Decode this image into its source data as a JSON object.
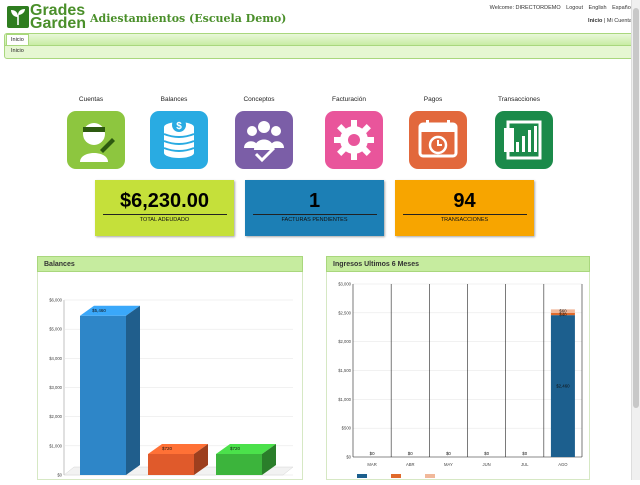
{
  "header": {
    "logo_line1": "Grades",
    "logo_line2": "Garden",
    "app_title": "Adiestamientos (Escuela Demo)",
    "welcome": "Welcome: DIRECTORDEMO",
    "logout": "Logout",
    "lang_en": "English",
    "lang_es": "Español",
    "nav_inicio": "Inicio",
    "nav_sep": "|",
    "nav_account": "Mi Cuenta"
  },
  "tabs": {
    "active": "Inicio",
    "breadcrumb": "Inicio"
  },
  "modules": [
    {
      "label": "Cuentas",
      "color": "#8dc63f",
      "icon": "student-icon"
    },
    {
      "label": "Balances",
      "color": "#29abe2",
      "icon": "coins-icon"
    },
    {
      "label": "Conceptos",
      "color": "#7b5ea7",
      "icon": "group-check-icon"
    },
    {
      "label": "Facturación",
      "color": "#e9559b",
      "icon": "gear-icon"
    },
    {
      "label": "Pagos",
      "color": "#e2683c",
      "icon": "calendar-clock-icon"
    },
    {
      "label": "Transacciones",
      "color": "#1b8a4a",
      "icon": "chart-icon"
    }
  ],
  "stats": [
    {
      "value": "$6,230.00",
      "label": "TOTAL ADEUDADO",
      "color": "#c5e03a"
    },
    {
      "value": "1",
      "label": "FACTURAS PENDIENTES",
      "color": "#1c7fb5"
    },
    {
      "value": "94",
      "label": "TRANSACCIONES",
      "color": "#f7a500"
    }
  ],
  "panels": {
    "balances_title": "Balances",
    "ingresos_title": "Ingresos Ultimos 6 Meses"
  },
  "chart_data": [
    {
      "type": "bar",
      "ylim": [
        0,
        6000
      ],
      "yticks": [
        "$0",
        "$1,000",
        "$2,000",
        "$3,000",
        "$4,000",
        "$5,000",
        "$6,000"
      ],
      "values": [
        5460,
        720,
        720
      ],
      "value_labels": [
        "$5,460",
        "$720",
        "$720"
      ],
      "colors": [
        "#2e86c8",
        "#e05a2b",
        "#3cb43c"
      ]
    },
    {
      "type": "bar",
      "categories": [
        "MAR",
        "ABR",
        "MAY",
        "JUN",
        "JUL",
        "AGO"
      ],
      "ylim": [
        0,
        3000
      ],
      "yticks": [
        "$0",
        "$500",
        "$1,000",
        "$1,500",
        "$2,000",
        "$2,500",
        "$3,000"
      ],
      "stack": [
        {
          "values": [
            0,
            0,
            0,
            0,
            0,
            2460
          ],
          "labels": [
            "$0",
            "$0",
            "$0",
            "$0",
            "$0",
            "$2,460"
          ],
          "color": "#1c5f8e"
        },
        {
          "values": [
            0,
            0,
            0,
            0,
            0,
            40
          ],
          "labels": [
            "",
            "",
            "",
            "",
            "",
            "$40"
          ],
          "color": "#e06a2b"
        },
        {
          "values": [
            0,
            0,
            0,
            0,
            0,
            60
          ],
          "labels": [
            "",
            "",
            "",
            "",
            "",
            "$60"
          ],
          "color": "#f1b89a"
        }
      ]
    }
  ]
}
